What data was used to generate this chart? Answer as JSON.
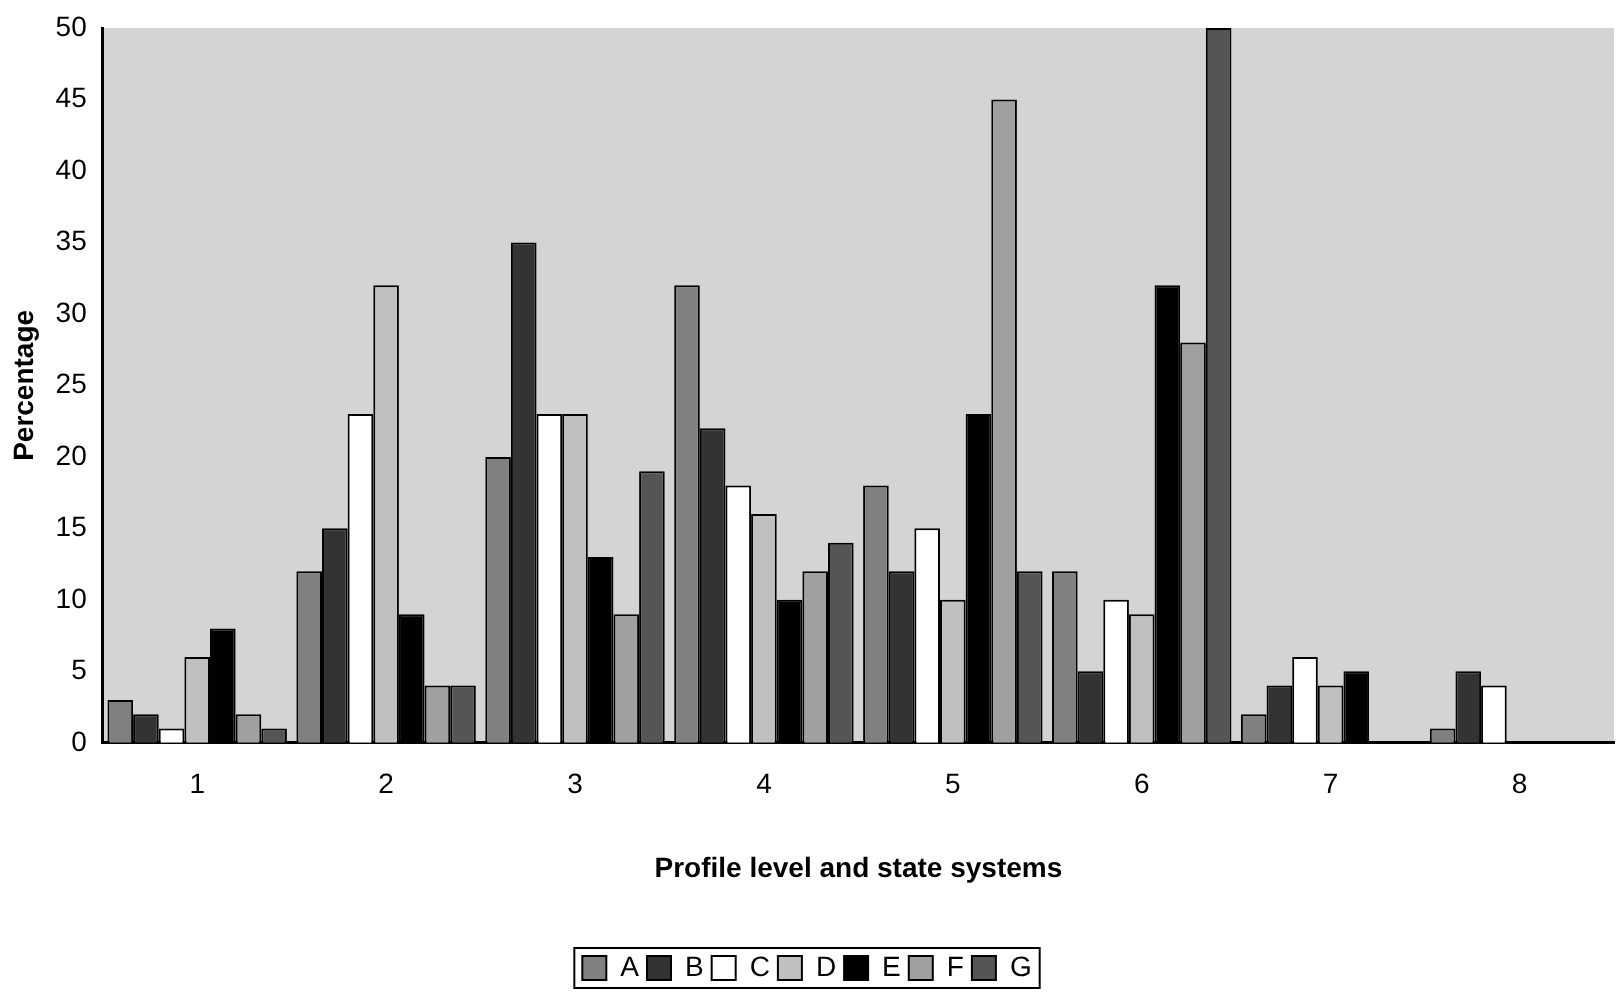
{
  "chart_data": {
    "type": "bar",
    "xlabel": "Profile level and state systems",
    "ylabel": "Percentage",
    "categories": [
      "1",
      "2",
      "3",
      "4",
      "5",
      "6",
      "7",
      "8"
    ],
    "series": [
      {
        "name": "A",
        "color": "#808080",
        "values": [
          3,
          12,
          20,
          32,
          18,
          12,
          2,
          1
        ]
      },
      {
        "name": "B",
        "color": "#333333",
        "values": [
          2,
          15,
          35,
          22,
          12,
          5,
          4,
          5
        ]
      },
      {
        "name": "C",
        "color": "#ffffff",
        "values": [
          1,
          23,
          23,
          18,
          15,
          10,
          6,
          4
        ]
      },
      {
        "name": "D",
        "color": "#c0c0c0",
        "values": [
          6,
          32,
          23,
          16,
          10,
          9,
          4,
          null
        ]
      },
      {
        "name": "E",
        "color": "#000000",
        "values": [
          8,
          9,
          13,
          10,
          23,
          32,
          5,
          null
        ]
      },
      {
        "name": "F",
        "color": "#a0a0a0",
        "values": [
          2,
          4,
          9,
          12,
          45,
          28,
          null,
          null
        ]
      },
      {
        "name": "G",
        "color": "#555555",
        "values": [
          1,
          4,
          19,
          14,
          12,
          50,
          null,
          null
        ]
      }
    ],
    "ylim": [
      0,
      50
    ],
    "yticks": [
      0,
      5,
      10,
      15,
      20,
      25,
      30,
      35,
      40,
      45,
      50
    ],
    "grid": false,
    "legend": "bottom"
  }
}
